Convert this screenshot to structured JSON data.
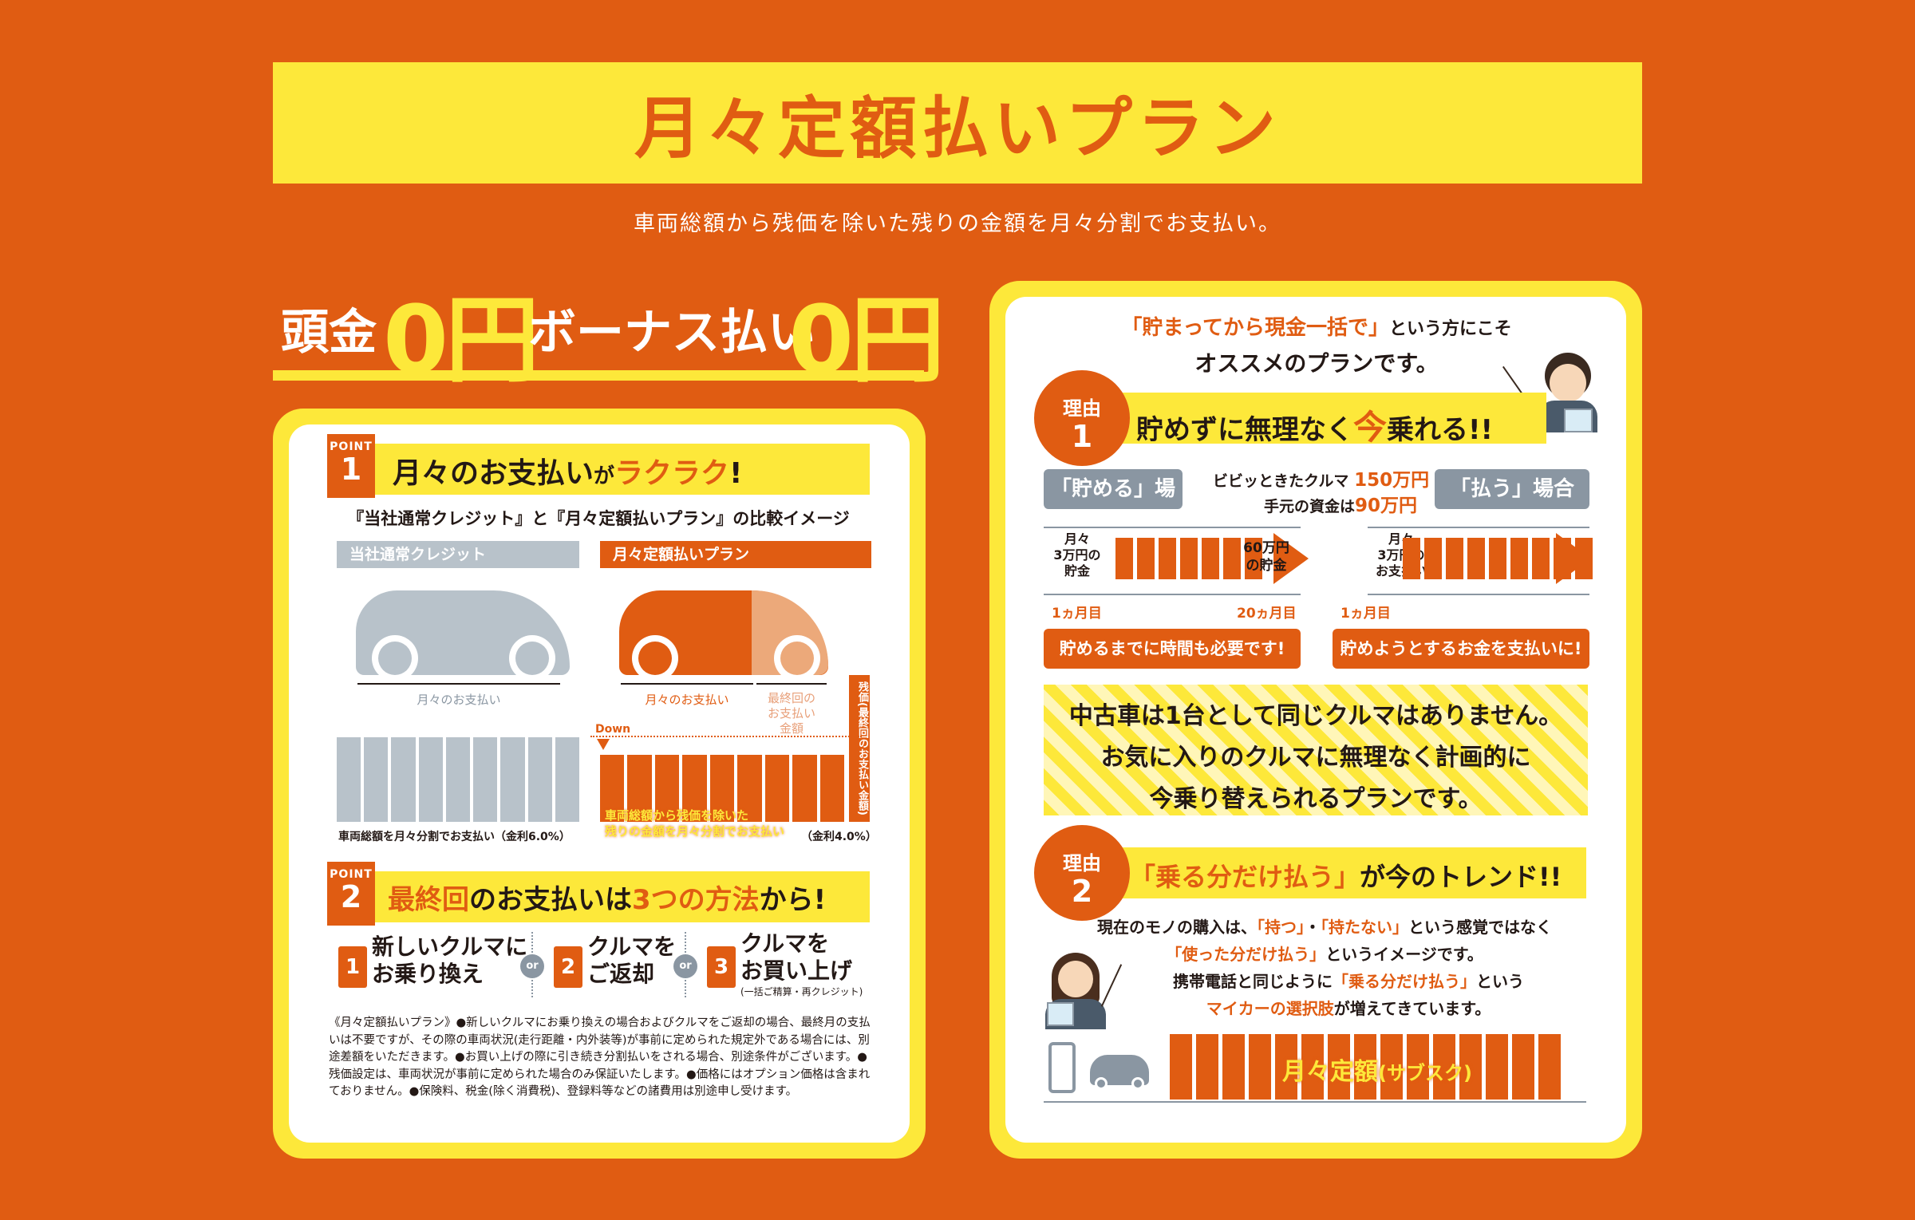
{
  "header": {
    "title": "月々定額払いプラン",
    "subtitle": "車両総額から残価を除いた残りの金額を月々分割でお支払い。"
  },
  "hero": {
    "down_label": "頭金",
    "down_value": "0円",
    "bonus_label": "ボーナス払い",
    "bonus_value": "0円"
  },
  "point1": {
    "badge_small": "POINT",
    "badge_num": "1",
    "title_a": "月々のお支払い",
    "title_b": "が",
    "title_c": "ラクラク",
    "title_d": "!",
    "compare_caption": "『当社通常クレジット』と『月々定額払いプラン』の比較イメージ",
    "normal_tag": "当社通常クレジット",
    "plan_tag": "月々定額払いプラン",
    "normal_monthly": "月々のお支払い",
    "plan_monthly": "月々のお支払い",
    "plan_final": "最終回の\nお支払い\n金額",
    "residual_label": "残価(最終回のお支払い金額)",
    "down_label": "Down",
    "plan_overlay": "車両総額から残価を除いた\n残りの金額を月々分割でお支払い",
    "normal_caption": "車両総額を月々分割でお支払い（金利6.0%）",
    "plan_rate": "（金利4.0%）"
  },
  "point2": {
    "badge_small": "POINT",
    "badge_num": "2",
    "title_a": "最終回",
    "title_b": "のお支払いは",
    "title_c": "3つの方法",
    "title_d": "から!",
    "or_label": "or",
    "options": [
      {
        "num": "1",
        "line1": "新しいクルマに",
        "line2": "お乗り換え"
      },
      {
        "num": "2",
        "line1": "クルマを",
        "line2": "ご返却"
      },
      {
        "num": "3",
        "line1": "クルマを",
        "line2": "お買い上げ",
        "note": "(一括ご精算・再クレジット)"
      }
    ],
    "notes": "《月々定額払いプラン》●新しいクルマにお乗り換えの場合およびクルマをご返却の場合、最終月の支払いは不要ですが、その際の車両状況(走行距離・内外装等)が事前に定められた規定外である場合には、別途差額をいただきます。●お買い上げの際に引き続き分割払いをされる場合、別途条件がございます。●残価設定は、車両状況が事前に定められた場合のみ保証いたします。●価格にはオプション価格は含まれておりません。●保険料、税金(除く消費税)、登録料等などの諸費用は別途申し受けます。"
  },
  "right": {
    "intro_a": "「貯まってから現金一括で」",
    "intro_b": "という方にこそ",
    "intro_c": "オススメのプランです。",
    "reason_small": "理由",
    "reason1_num": "1",
    "reason1_title_a": "貯めずに無理なく",
    "reason1_title_b": "今",
    "reason1_title_c": "乗れる!!",
    "save_tag": "「貯める」場合",
    "pay_tag": "「払う」場合",
    "car_price_label": "ビビッときたクルマ",
    "car_price": "150万円",
    "cash_label": "手元の資金は",
    "cash": "90万円",
    "save_monthly": "月々\n3万円の\n貯金",
    "save_result": "60万円\nの貯金",
    "save_start": "1ヵ月目",
    "save_end": "20ヵ月目",
    "pay_monthly": "月々\n3万円の\nお支払い",
    "pay_start": "1ヵ月目",
    "save_msg": "貯めるまでに時間も必要です!",
    "pay_msg": "貯めようとするお金を支払いに!",
    "stripe_line1": "中古車は1台として同じクルマはありません。",
    "stripe_line2": "お気に入りのクルマに無理なく計画的に",
    "stripe_line3": "今乗り替えられるプランです。",
    "reason2_num": "2",
    "reason2_title_a": "「乗る分だけ払う」",
    "reason2_title_b": "が今のトレンド!!",
    "trend_l1_a": "現在のモノの購入は、",
    "trend_l1_b": "「持つ」",
    "trend_l1_c": "・",
    "trend_l1_d": "「持たない」",
    "trend_l1_e": "という感覚ではなく",
    "trend_l2_a": "「使った分だけ払う」",
    "trend_l2_b": "というイメージです。",
    "trend_l3_a": "携帯電話と同じように",
    "trend_l3_b": "「乗る分だけ払う」",
    "trend_l3_c": "という",
    "trend_l4_a": "マイカーの選択肢",
    "trend_l4_b": "が増えてきています。",
    "subscription_a": "月々定額",
    "subscription_b": "(サブスク)"
  },
  "colors": {
    "background": "#e05c12",
    "accent_yellow": "#fde83a",
    "gray": "#8a96a2",
    "text": "#231815"
  }
}
